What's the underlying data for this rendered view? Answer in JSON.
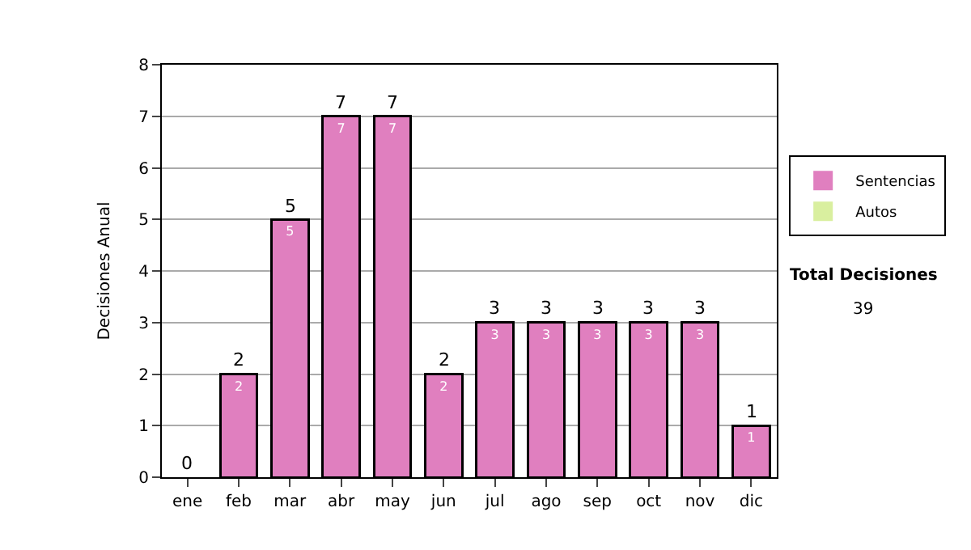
{
  "chart_data": {
    "type": "bar",
    "stacked": true,
    "ylabel": "Decisiones Anual",
    "categories": [
      "ene",
      "feb",
      "mar",
      "abr",
      "may",
      "jun",
      "jul",
      "ago",
      "sep",
      "oct",
      "nov",
      "dic"
    ],
    "series": [
      {
        "name": "Sentencias",
        "color": "#e07fbf",
        "values": [
          0,
          2,
          5,
          7,
          7,
          2,
          3,
          3,
          3,
          3,
          3,
          1
        ],
        "value_labels": [
          null,
          "2",
          "5",
          "7",
          "7",
          "2",
          "3",
          "3",
          "3",
          "3",
          "3",
          "1"
        ]
      },
      {
        "name": "Autos",
        "color": "#d9ef9f",
        "values": [
          0,
          0,
          0,
          0,
          0,
          0,
          0,
          0,
          0,
          0,
          0,
          0
        ]
      }
    ],
    "totals": [
      "0",
      "2",
      "5",
      "7",
      "7",
      "2",
      "3",
      "3",
      "3",
      "3",
      "3",
      "1"
    ],
    "ylim": [
      0,
      8
    ],
    "yticks": [
      0,
      1,
      2,
      3,
      4,
      5,
      6,
      7,
      8
    ],
    "grid": "y",
    "legend": "right",
    "annotations": [
      "Total Decisiones",
      "39"
    ]
  }
}
